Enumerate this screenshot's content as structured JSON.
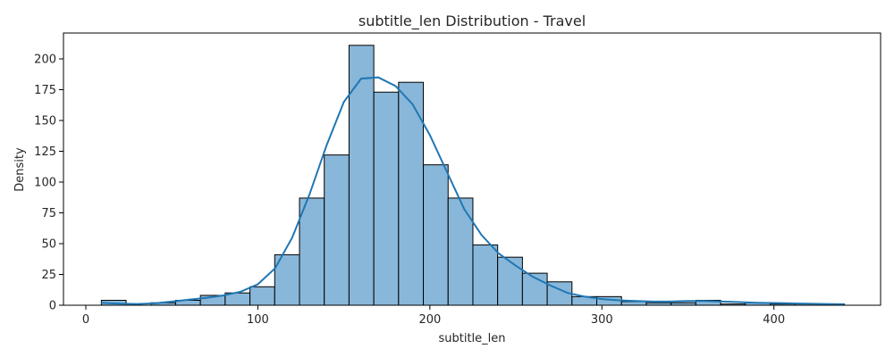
{
  "chart_data": {
    "type": "bar",
    "title": "subtitle_len Distribution - Travel",
    "xlabel": "subtitle_len",
    "ylabel": "Density",
    "xlim": [
      -13,
      462
    ],
    "ylim": [
      0,
      221
    ],
    "x_ticks": [
      0,
      100,
      200,
      300,
      400
    ],
    "y_ticks": [
      0,
      25,
      50,
      75,
      100,
      125,
      150,
      175,
      200
    ],
    "bin_edges": [
      9,
      23.4,
      37.8,
      52.2,
      66.6,
      81,
      95.4,
      109.8,
      124.2,
      138.6,
      153,
      167.4,
      181.8,
      196.2,
      210.6,
      225,
      239.4,
      253.8,
      268.2,
      282.6,
      297,
      311.4,
      325.8,
      340.2,
      354.6,
      369,
      383.4,
      397.8,
      412.2,
      426.6,
      441
    ],
    "values": [
      4,
      0,
      2,
      4,
      8,
      10,
      15,
      41,
      87,
      122,
      211,
      173,
      181,
      114,
      87,
      49,
      39,
      26,
      19,
      7,
      7,
      3,
      2,
      2,
      4,
      1,
      2,
      1,
      1,
      1
    ],
    "kde": {
      "x": [
        9,
        20,
        30,
        40,
        50,
        60,
        70,
        80,
        90,
        100,
        110,
        120,
        130,
        140,
        150,
        160,
        170,
        180,
        190,
        200,
        210,
        220,
        230,
        240,
        250,
        260,
        270,
        280,
        290,
        300,
        310,
        320,
        330,
        340,
        350,
        360,
        370,
        380,
        390,
        400,
        410,
        420,
        430,
        441
      ],
      "y": [
        2,
        1.2,
        1,
        1.5,
        3,
        4.5,
        6,
        8,
        11,
        17,
        30,
        55,
        90,
        130,
        165,
        184,
        185,
        178,
        163,
        138,
        108,
        78,
        57,
        42,
        32,
        23,
        16,
        10,
        7,
        5,
        4,
        3.5,
        3,
        3,
        3.5,
        3.5,
        3,
        2.5,
        2,
        1.8,
        1.5,
        1.2,
        1,
        0.8
      ]
    },
    "bar_color": "#89b7d9",
    "line_color": "#1f77b4",
    "grid": false
  }
}
